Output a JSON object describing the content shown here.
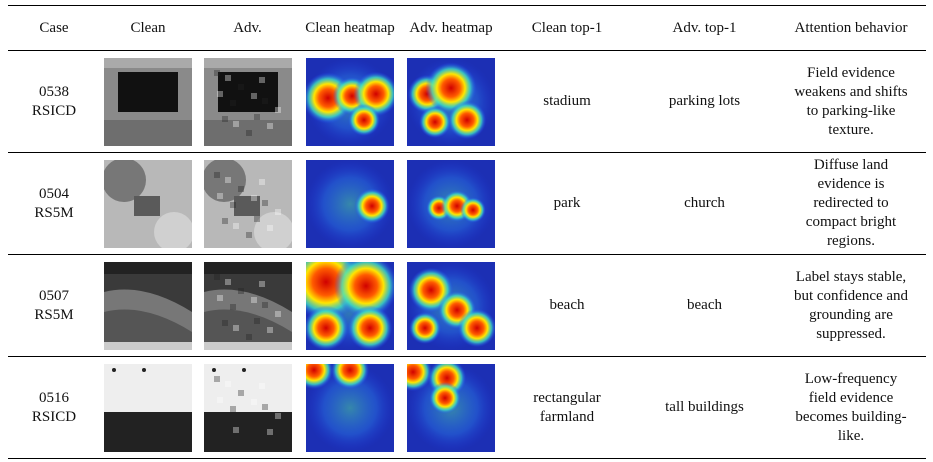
{
  "table": {
    "headers": [
      "Case",
      "Clean",
      "Adv.",
      "Clean heatmap",
      "Adv. heatmap",
      "Clean top-1",
      "Adv. top-1",
      "Attention behavior"
    ],
    "rows": [
      {
        "case_id": "0538",
        "dataset": "RSICD",
        "clean_top1": "stadium",
        "adv_top1": "parking lots",
        "attention": "Field evidence weakens and shifts to parking-like texture."
      },
      {
        "case_id": "0504",
        "dataset": "RS5M",
        "clean_top1": "park",
        "adv_top1": "church",
        "attention": "Diffuse land evidence is redirected to compact bright regions."
      },
      {
        "case_id": "0507",
        "dataset": "RS5M",
        "clean_top1": "beach",
        "adv_top1": "beach",
        "attention": "Label stays stable, but confidence and grounding are suppressed."
      },
      {
        "case_id": "0516",
        "dataset": "RSICD",
        "clean_top1": "rectangular farmland",
        "adv_top1": "tall buildings",
        "attention": "Low-frequency field evidence becomes building-like."
      }
    ]
  }
}
